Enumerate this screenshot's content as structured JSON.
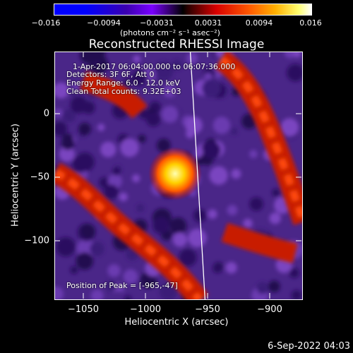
{
  "title": "Reconstructed RHESSI Image",
  "colorbar": {
    "ticks": [
      "−0.016",
      "−0.0094",
      "−0.0031",
      "0.0031",
      "0.0094",
      "0.016"
    ],
    "units": "(photons cm⁻² s⁻¹ asec⁻²)"
  },
  "annotations": {
    "time": "1-Apr-2017 06:04:00.000 to 06:07:36.000",
    "detectors": "Detectors: 3F 6F, Att 0",
    "energy": "Energy Range: 6.0 - 12.0 keV",
    "clean": "Clean     Total counts: 9.32E+03",
    "peak": "Position of Peak = [-965,-47]"
  },
  "axes": {
    "xlabel": "Heliocentric X (arcsec)",
    "ylabel": "Heliocentric Y (arcsec)",
    "xticks": [
      "−1050",
      "−1000",
      "−950",
      "−900"
    ],
    "yticks": [
      "0",
      "−50",
      "−100"
    ],
    "xlim": [
      -1066,
      -867
    ],
    "ylim": [
      -145,
      50
    ]
  },
  "footer_date": "6-Sep-2022 04:03",
  "colors": {
    "background": "#000000",
    "image_base": "#5a2a9a",
    "peak": "#ffff80",
    "limb": "#ffffff"
  }
}
